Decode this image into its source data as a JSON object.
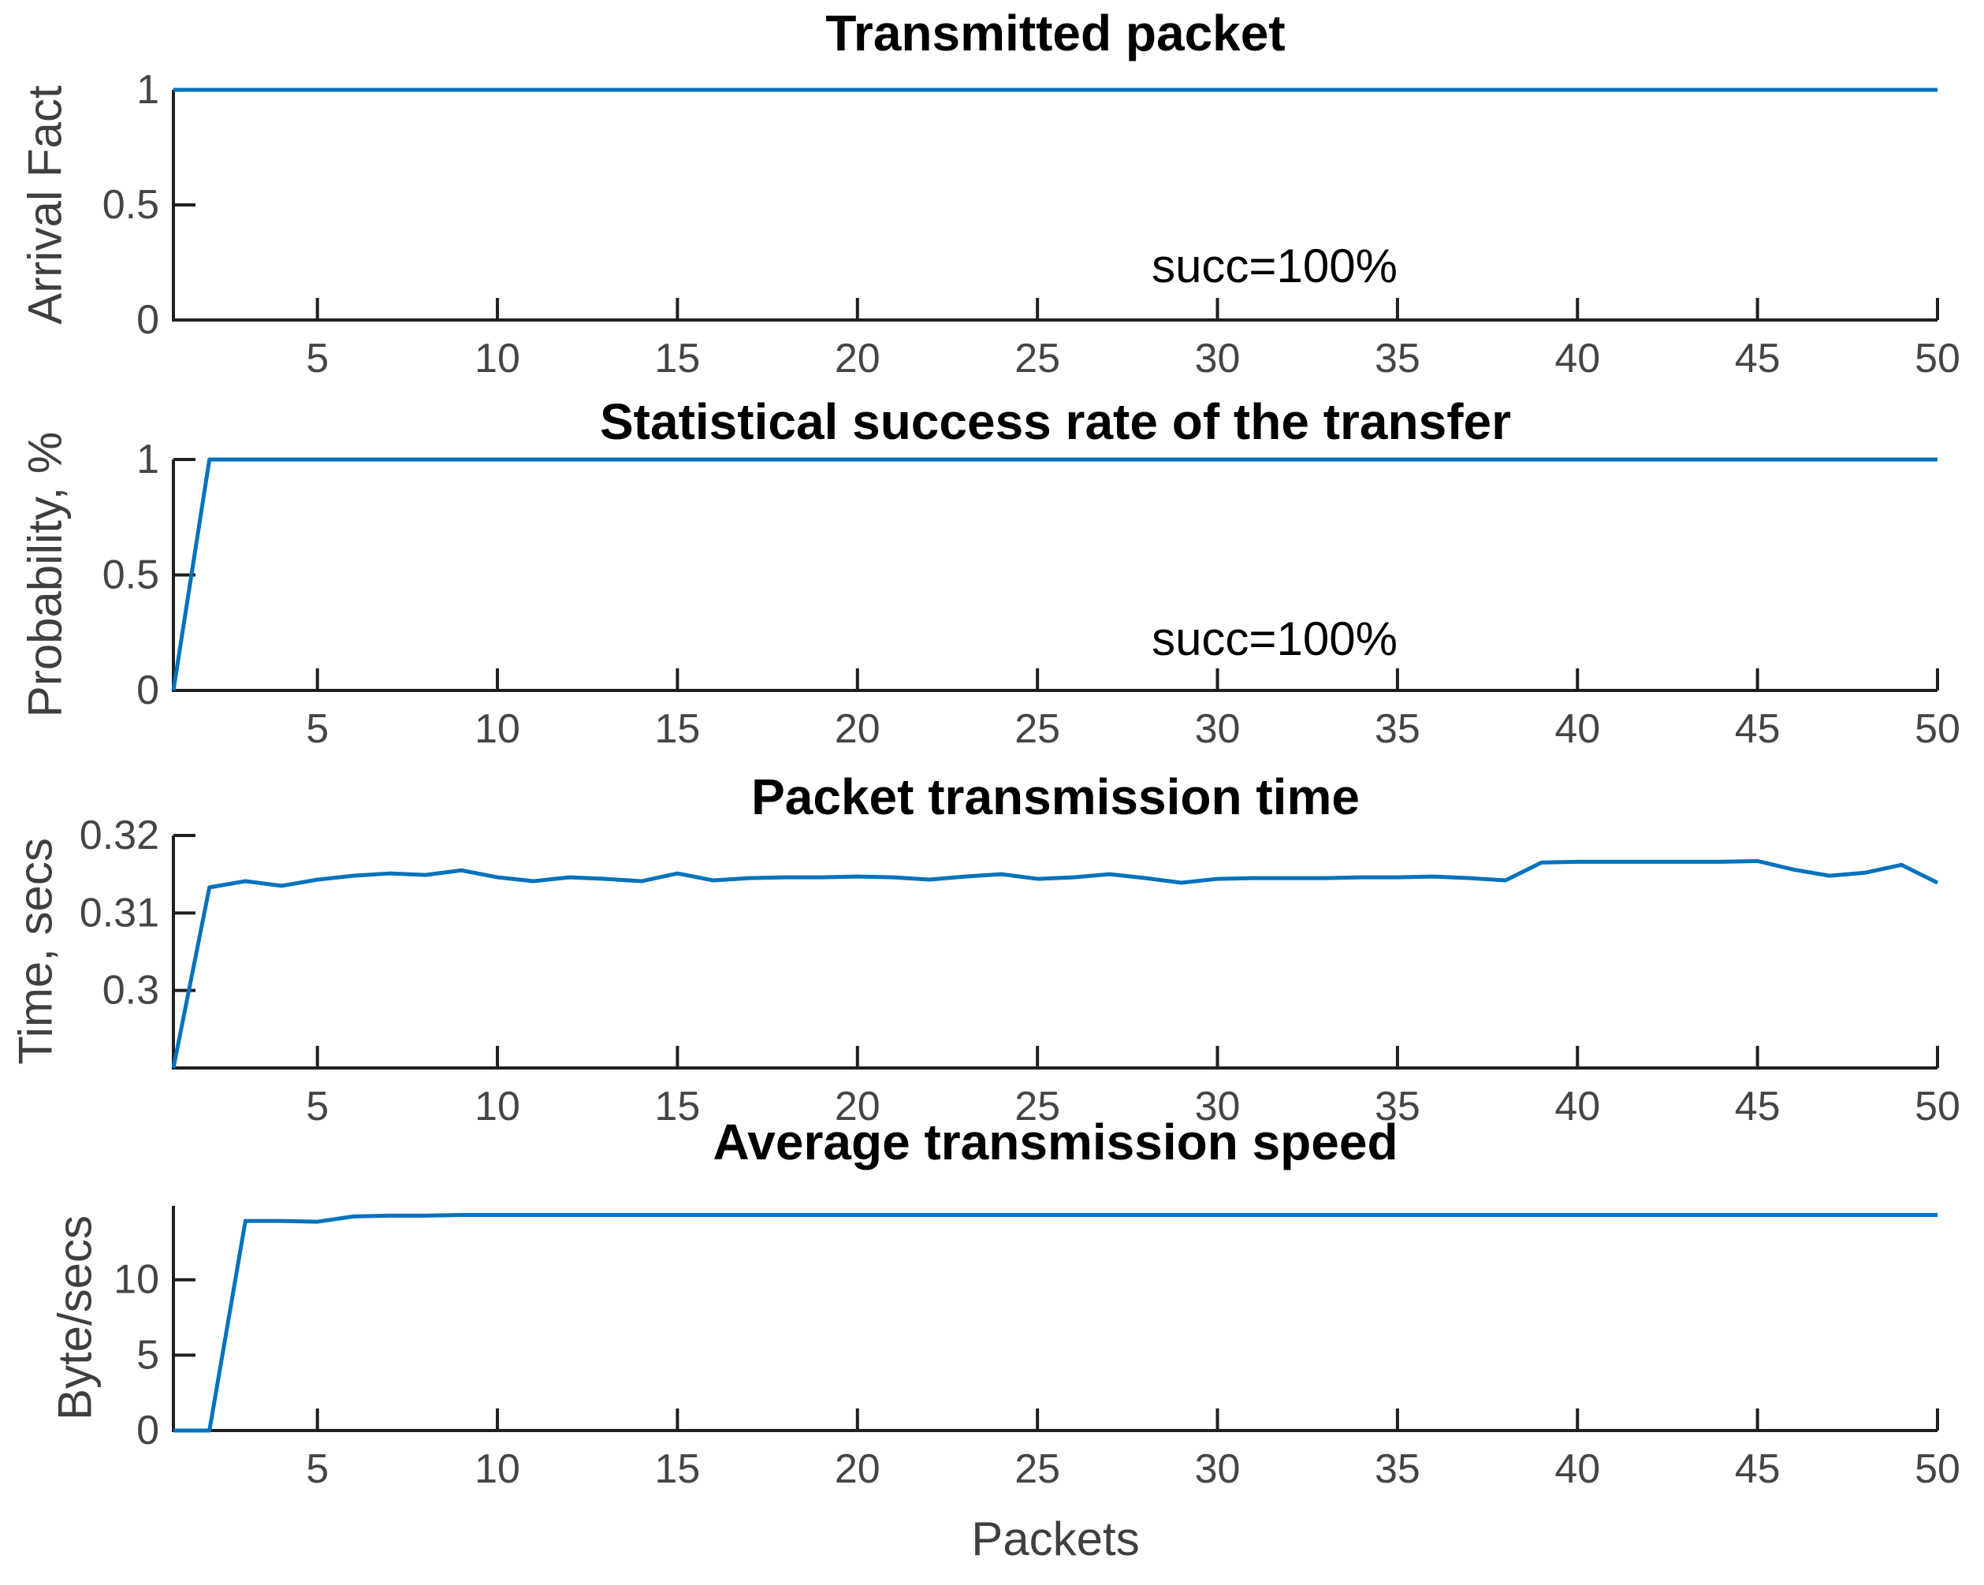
{
  "figure": {
    "xlabel": "Packets",
    "background": "#ffffff",
    "line_color": "#0072BD",
    "axis_color": "#1f1f1f",
    "tick_label_color": "#454545",
    "title_color": "#000000"
  },
  "chart_data": [
    {
      "type": "line",
      "title": "Transmitted packet",
      "ylabel": "Arrival Fact",
      "annotation": "succ=100%",
      "annotation_at": {
        "x": 31.5,
        "y": 0.235
      },
      "x_range": [
        1,
        50
      ],
      "xticks": [
        5,
        10,
        15,
        20,
        25,
        30,
        35,
        40,
        45,
        50
      ],
      "ylim": [
        0,
        1
      ],
      "yticks": [
        0,
        0.5,
        1
      ],
      "values": [
        1,
        1,
        1,
        1,
        1,
        1,
        1,
        1,
        1,
        1,
        1,
        1,
        1,
        1,
        1,
        1,
        1,
        1,
        1,
        1,
        1,
        1,
        1,
        1,
        1,
        1,
        1,
        1,
        1,
        1,
        1,
        1,
        1,
        1,
        1,
        1,
        1,
        1,
        1,
        1,
        1,
        1,
        1,
        1,
        1,
        1,
        1,
        1,
        1,
        1
      ]
    },
    {
      "type": "line",
      "title": "Statistical success rate of the transfer",
      "ylabel": "Probability, %",
      "annotation": "succ=100%",
      "annotation_at": {
        "x": 31.5,
        "y": 0.225
      },
      "x_range": [
        1,
        50
      ],
      "xticks": [
        5,
        10,
        15,
        20,
        25,
        30,
        35,
        40,
        45,
        50
      ],
      "ylim": [
        0,
        1
      ],
      "yticks": [
        0,
        0.5,
        1
      ],
      "values": [
        0,
        1,
        1,
        1,
        1,
        1,
        1,
        1,
        1,
        1,
        1,
        1,
        1,
        1,
        1,
        1,
        1,
        1,
        1,
        1,
        1,
        1,
        1,
        1,
        1,
        1,
        1,
        1,
        1,
        1,
        1,
        1,
        1,
        1,
        1,
        1,
        1,
        1,
        1,
        1,
        1,
        1,
        1,
        1,
        1,
        1,
        1,
        1,
        1,
        1
      ]
    },
    {
      "type": "line",
      "title": "Packet transmission time",
      "ylabel": "Time, secs",
      "annotation": "",
      "annotation_at": null,
      "x_range": [
        1,
        50
      ],
      "xticks": [
        5,
        10,
        15,
        20,
        25,
        30,
        35,
        40,
        45,
        50
      ],
      "ylim": [
        0.29,
        0.32
      ],
      "yticks": [
        0.3,
        0.31,
        0.32
      ],
      "values": [
        0.2895,
        0.3133,
        0.3141,
        0.3135,
        0.3143,
        0.3148,
        0.3151,
        0.3149,
        0.3155,
        0.3146,
        0.3141,
        0.3146,
        0.3144,
        0.3141,
        0.3151,
        0.3142,
        0.3145,
        0.3146,
        0.3146,
        0.3147,
        0.3146,
        0.3143,
        0.3147,
        0.315,
        0.3144,
        0.3146,
        0.315,
        0.3145,
        0.3139,
        0.3144,
        0.3145,
        0.3145,
        0.3145,
        0.3146,
        0.3146,
        0.3147,
        0.3145,
        0.3142,
        0.3165,
        0.3166,
        0.3166,
        0.3166,
        0.3166,
        0.3166,
        0.3167,
        0.3156,
        0.3148,
        0.3152,
        0.3162,
        0.3139
      ]
    },
    {
      "type": "line",
      "title": "Average transmission speed",
      "ylabel": "Byte/secs",
      "annotation": "",
      "annotation_at": null,
      "x_range": [
        1,
        50
      ],
      "xticks": [
        5,
        10,
        15,
        20,
        25,
        30,
        35,
        40,
        45,
        50
      ],
      "ylim": [
        0,
        14.9
      ],
      "yticks": [
        0,
        5,
        10
      ],
      "values": [
        0,
        0,
        13.9,
        13.9,
        13.85,
        14.2,
        14.25,
        14.25,
        14.3,
        14.3,
        14.3,
        14.3,
        14.3,
        14.3,
        14.3,
        14.3,
        14.3,
        14.3,
        14.3,
        14.3,
        14.3,
        14.3,
        14.3,
        14.3,
        14.3,
        14.3,
        14.3,
        14.3,
        14.3,
        14.3,
        14.3,
        14.3,
        14.3,
        14.3,
        14.3,
        14.3,
        14.3,
        14.3,
        14.3,
        14.3,
        14.3,
        14.3,
        14.3,
        14.3,
        14.3,
        14.3,
        14.3,
        14.3,
        14.3,
        14.3
      ]
    }
  ]
}
